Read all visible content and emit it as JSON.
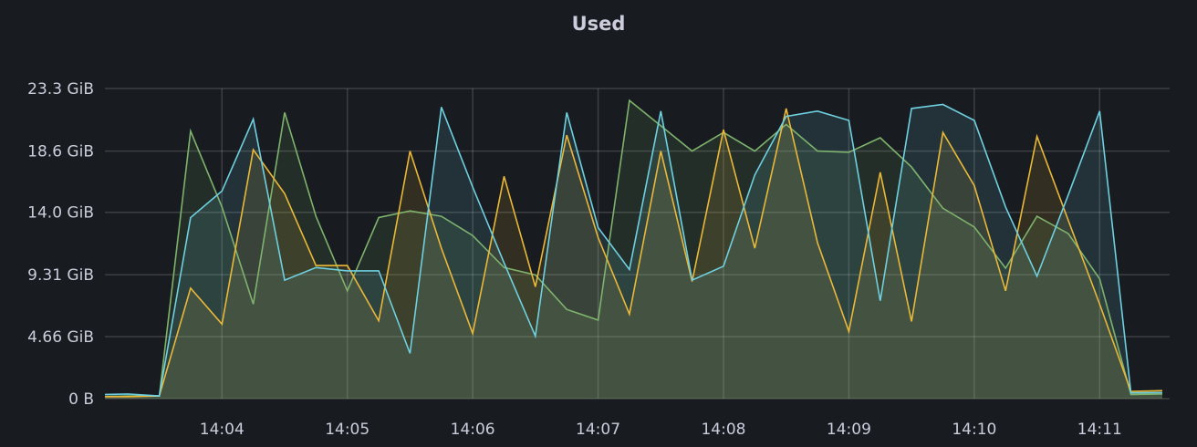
{
  "chart_data": {
    "type": "area",
    "title": "Used",
    "xlabel": "",
    "ylabel": "",
    "x": [
      "14:03:00",
      "14:03:15",
      "14:03:30",
      "14:03:45",
      "14:04:00",
      "14:04:15",
      "14:04:30",
      "14:04:45",
      "14:05:00",
      "14:05:15",
      "14:05:30",
      "14:05:45",
      "14:06:00",
      "14:06:15",
      "14:06:30",
      "14:06:45",
      "14:07:00",
      "14:07:15",
      "14:07:30",
      "14:07:45",
      "14:08:00",
      "14:08:15",
      "14:08:30",
      "14:08:45",
      "14:09:00",
      "14:09:15",
      "14:09:30",
      "14:09:45",
      "14:10:00",
      "14:10:15",
      "14:10:30",
      "14:10:45",
      "14:11:00",
      "14:11:15",
      "14:11:30"
    ],
    "xlim": [
      "14:03:04",
      "14:11:30"
    ],
    "x_ticks": [
      "14:04",
      "14:05",
      "14:06",
      "14:07",
      "14:08",
      "14:09",
      "14:10",
      "14:11"
    ],
    "y_unit": "GiB",
    "ylim": [
      0,
      23.3
    ],
    "y_ticks": [
      {
        "value": 0,
        "label": "0 B"
      },
      {
        "value": 4.66,
        "label": "4.66 GiB"
      },
      {
        "value": 9.31,
        "label": "9.31 GiB"
      },
      {
        "value": 14.0,
        "label": "14.0 GiB"
      },
      {
        "value": 18.6,
        "label": "18.6 GiB"
      },
      {
        "value": 23.3,
        "label": "23.3 GiB"
      }
    ],
    "grid": true,
    "legend": "none",
    "series": [
      {
        "color": "#7eb26d",
        "values": [
          0.15,
          0.2,
          0.2,
          20.1,
          14.4,
          7.1,
          21.5,
          13.7,
          8.1,
          13.6,
          14.1,
          13.7,
          12.25,
          9.85,
          9.3,
          6.7,
          5.9,
          22.4,
          20.5,
          18.6,
          20.0,
          18.6,
          20.6,
          18.6,
          18.5,
          19.6,
          17.4,
          14.3,
          12.9,
          9.8,
          13.7,
          12.4,
          9.0,
          0.3,
          0.35
        ]
      },
      {
        "color": "#eab839",
        "values": [
          0.15,
          0.15,
          0.2,
          8.3,
          5.6,
          18.7,
          15.4,
          10.0,
          10.0,
          5.85,
          18.6,
          11.3,
          4.9,
          16.7,
          8.4,
          19.8,
          12.1,
          6.35,
          18.6,
          8.8,
          20.2,
          11.3,
          21.8,
          11.7,
          5.05,
          17.0,
          5.8,
          20.0,
          16.0,
          8.1,
          19.7,
          13.4,
          7.1,
          0.55,
          0.6
        ]
      },
      {
        "color": "#6ed0e0",
        "values": [
          0.3,
          0.35,
          0.2,
          13.6,
          15.6,
          21.0,
          8.9,
          9.85,
          9.6,
          9.6,
          3.4,
          21.9,
          15.9,
          10.2,
          4.7,
          21.5,
          12.85,
          9.7,
          21.6,
          8.9,
          9.95,
          16.8,
          21.2,
          21.6,
          20.9,
          7.35,
          21.8,
          22.1,
          20.9,
          14.4,
          9.2,
          15.3,
          21.6,
          0.43,
          0.45
        ]
      }
    ]
  }
}
